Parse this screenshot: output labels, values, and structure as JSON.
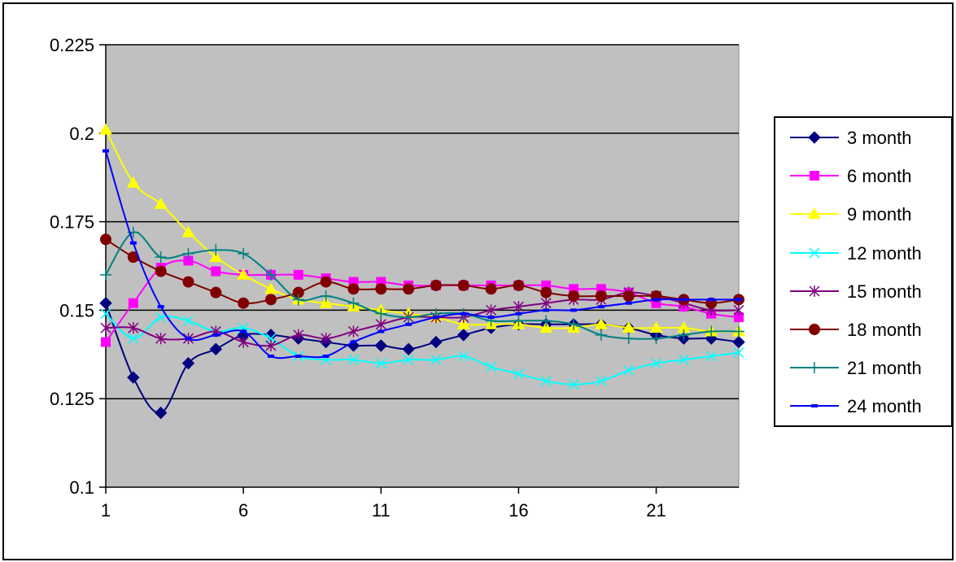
{
  "chart_data": {
    "type": "line",
    "title": "",
    "xlabel": "",
    "ylabel": "",
    "x": [
      1,
      2,
      3,
      4,
      5,
      6,
      7,
      8,
      9,
      10,
      11,
      12,
      13,
      14,
      15,
      16,
      17,
      18,
      19,
      20,
      21,
      22,
      23,
      24
    ],
    "xticks": [
      "1",
      "6",
      "11",
      "16",
      "21"
    ],
    "yticks": [
      "0.1",
      "0.125",
      "0.15",
      "0.175",
      "0.2",
      "0.225"
    ],
    "ylim": [
      0.1,
      0.225
    ],
    "grid": "horizontal",
    "plot_background": "#c0c0c0",
    "legend_position": "right",
    "series": [
      {
        "name": "3 month",
        "color": "#000080",
        "marker": "diamond",
        "values": [
          0.152,
          0.131,
          0.121,
          0.135,
          0.139,
          0.143,
          0.143,
          0.142,
          0.141,
          0.14,
          0.14,
          0.139,
          0.141,
          0.143,
          0.145,
          0.146,
          0.146,
          0.146,
          0.146,
          0.145,
          0.143,
          0.142,
          0.142,
          0.141
        ]
      },
      {
        "name": "6 month",
        "color": "#ff00ff",
        "marker": "square",
        "values": [
          0.141,
          0.152,
          0.162,
          0.164,
          0.161,
          0.16,
          0.16,
          0.16,
          0.159,
          0.158,
          0.158,
          0.157,
          0.157,
          0.157,
          0.157,
          0.157,
          0.157,
          0.156,
          0.156,
          0.155,
          0.152,
          0.151,
          0.149,
          0.148
        ]
      },
      {
        "name": "9 month",
        "color": "#ffff00",
        "marker": "triangle",
        "values": [
          0.201,
          0.186,
          0.18,
          0.172,
          0.165,
          0.16,
          0.156,
          0.153,
          0.152,
          0.151,
          0.15,
          0.149,
          0.148,
          0.146,
          0.146,
          0.146,
          0.145,
          0.145,
          0.146,
          0.145,
          0.145,
          0.145,
          0.144,
          0.144
        ]
      },
      {
        "name": "12 month",
        "color": "#00ffff",
        "marker": "x",
        "values": [
          0.149,
          0.142,
          0.148,
          0.147,
          0.144,
          0.145,
          0.142,
          0.137,
          0.136,
          0.136,
          0.135,
          0.136,
          0.136,
          0.137,
          0.134,
          0.132,
          0.13,
          0.129,
          0.13,
          0.133,
          0.135,
          0.136,
          0.137,
          0.138
        ]
      },
      {
        "name": "15 month",
        "color": "#800080",
        "marker": "star",
        "values": [
          0.145,
          0.145,
          0.142,
          0.142,
          0.144,
          0.141,
          0.14,
          0.143,
          0.142,
          0.144,
          0.146,
          0.148,
          0.148,
          0.148,
          0.15,
          0.151,
          0.152,
          0.153,
          0.153,
          0.155,
          0.154,
          0.152,
          0.15,
          0.15
        ]
      },
      {
        "name": "18 month",
        "color": "#800000",
        "marker": "circle",
        "values": [
          0.17,
          0.165,
          0.161,
          0.158,
          0.155,
          0.152,
          0.153,
          0.155,
          0.158,
          0.156,
          0.156,
          0.156,
          0.157,
          0.157,
          0.156,
          0.157,
          0.155,
          0.154,
          0.154,
          0.154,
          0.154,
          0.153,
          0.152,
          0.153
        ]
      },
      {
        "name": "21 month",
        "color": "#008080",
        "marker": "plus",
        "values": [
          0.16,
          0.172,
          0.165,
          0.166,
          0.167,
          0.166,
          0.16,
          0.153,
          0.154,
          0.152,
          0.149,
          0.148,
          0.149,
          0.149,
          0.147,
          0.147,
          0.147,
          0.146,
          0.143,
          0.142,
          0.142,
          0.143,
          0.144,
          0.144
        ]
      },
      {
        "name": "24 month",
        "color": "#0000ff",
        "marker": "dash",
        "values": [
          0.195,
          0.169,
          0.151,
          0.142,
          0.143,
          0.144,
          0.137,
          0.137,
          0.137,
          0.141,
          0.144,
          0.146,
          0.148,
          0.149,
          0.148,
          0.149,
          0.15,
          0.15,
          0.151,
          0.152,
          0.153,
          0.153,
          0.153,
          0.153
        ]
      }
    ]
  }
}
